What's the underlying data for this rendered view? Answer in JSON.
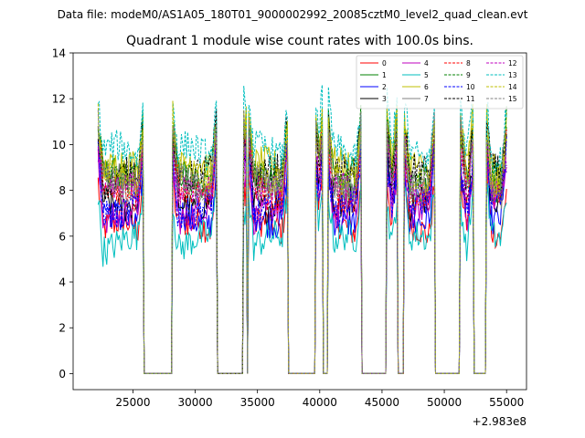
{
  "chart_data": {
    "type": "line",
    "suptitle": "Data file: modeM0/AS1A05_180T01_9000002992_20085cztM0_level2_quad_clean.evt",
    "title": "Quadrant 1 module wise count rates with 100.0s bins.",
    "xlabel": "",
    "ylabel": "",
    "x_offset_label": "+2.983e8",
    "xlim": [
      20200,
      56600
    ],
    "ylim": [
      -0.7,
      14
    ],
    "xticks": [
      25000,
      30000,
      35000,
      40000,
      45000,
      50000,
      55000
    ],
    "xtick_labels": [
      "25000",
      "30000",
      "35000",
      "40000",
      "45000",
      "50000",
      "55000"
    ],
    "yticks": [
      0,
      2,
      4,
      6,
      8,
      10,
      12,
      14
    ],
    "ytick_labels": [
      "0",
      "2",
      "4",
      "6",
      "8",
      "10",
      "12",
      "14"
    ],
    "legend_position": "top-right",
    "time_range": [
      22200,
      55000
    ],
    "bin_size": 100,
    "segments": [
      {
        "start": 22200,
        "end": 25800
      },
      {
        "start": 28200,
        "end": 31700
      },
      {
        "start": 33900,
        "end": 34100
      },
      {
        "start": 34300,
        "end": 37400
      },
      {
        "start": 39700,
        "end": 40200
      },
      {
        "start": 40700,
        "end": 43300
      },
      {
        "start": 45400,
        "end": 46200
      },
      {
        "start": 46800,
        "end": 49200
      },
      {
        "start": 51300,
        "end": 52300
      },
      {
        "start": 53400,
        "end": 55000
      }
    ],
    "series": [
      {
        "name": "0",
        "color": "#ff0000",
        "dash": "solid",
        "mean": 6.3
      },
      {
        "name": "1",
        "color": "#008000",
        "dash": "solid",
        "mean": 8.4
      },
      {
        "name": "2",
        "color": "#0000ff",
        "dash": "solid",
        "mean": 6.9
      },
      {
        "name": "3",
        "color": "#000000",
        "dash": "solid",
        "mean": 7.6
      },
      {
        "name": "4",
        "color": "#bf00bf",
        "dash": "solid",
        "mean": 7.1
      },
      {
        "name": "5",
        "color": "#00bfbf",
        "dash": "solid",
        "mean": 5.7
      },
      {
        "name": "6",
        "color": "#bfbf00",
        "dash": "solid",
        "mean": 8.9
      },
      {
        "name": "7",
        "color": "#808080",
        "dash": "solid",
        "mean": 8.2
      },
      {
        "name": "8",
        "color": "#ff0000",
        "dash": "dashed",
        "mean": 8.0
      },
      {
        "name": "9",
        "color": "#008000",
        "dash": "dashed",
        "mean": 8.8
      },
      {
        "name": "10",
        "color": "#0000ff",
        "dash": "dashed",
        "mean": 7.3
      },
      {
        "name": "11",
        "color": "#000000",
        "dash": "dashed",
        "mean": 8.6
      },
      {
        "name": "12",
        "color": "#bf00bf",
        "dash": "dashed",
        "mean": 7.8
      },
      {
        "name": "13",
        "color": "#00bfbf",
        "dash": "dashed",
        "mean": 9.6
      },
      {
        "name": "14",
        "color": "#bfbf00",
        "dash": "dashed",
        "mean": 8.7
      },
      {
        "name": "15",
        "color": "#808080",
        "dash": "dashed",
        "mean": 8.5
      }
    ]
  }
}
